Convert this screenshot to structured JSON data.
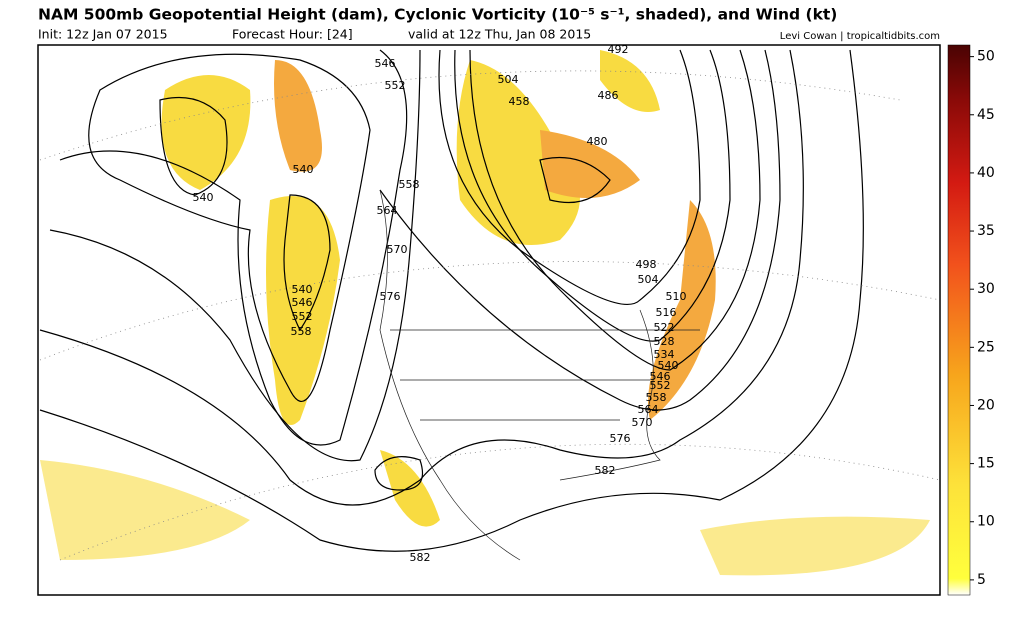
{
  "header": {
    "title": "NAM 500mb Geopotential Height (dam), Cyclonic Vorticity (10⁻⁵ s⁻¹, shaded), and Wind (kt)",
    "init": "Init: 12z Jan 07 2015",
    "forecast_hour": "Forecast Hour: [24]",
    "valid": "valid at 12z Thu, Jan 08 2015",
    "credit": "Levi Cowan | tropicaltidbits.com"
  },
  "colorbar": {
    "range": [
      3.7,
      51
    ],
    "ticks": [
      5,
      10,
      15,
      20,
      25,
      30,
      35,
      40,
      45,
      50
    ]
  },
  "contour_labels": [
    "492",
    "504",
    "458",
    "486",
    "480",
    "546",
    "552",
    "540",
    "558",
    "540",
    "564",
    "570",
    "576",
    "540",
    "546",
    "552",
    "558",
    "498",
    "504",
    "510",
    "516",
    "522",
    "528",
    "534",
    "540",
    "546",
    "552",
    "558",
    "564",
    "570",
    "576",
    "582",
    "582"
  ]
}
